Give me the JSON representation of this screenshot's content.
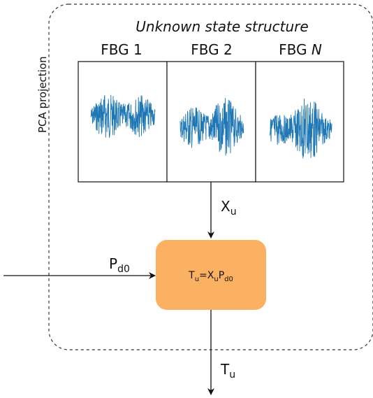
{
  "title": "Unknown state structure",
  "side_label": "PCA projection",
  "sensors": [
    {
      "name": "FBG 1",
      "italic_suffix": ""
    },
    {
      "name": "FBG 2",
      "italic_suffix": ""
    },
    {
      "name": "FBG ",
      "italic_suffix": "N"
    }
  ],
  "input_xu": {
    "base": "X",
    "sub": "u"
  },
  "input_pd0": {
    "base": "P",
    "sub": "d0"
  },
  "process_box": {
    "parts": [
      {
        "base": "T",
        "sub": "u"
      },
      {
        "base": "=X",
        "sub": "u"
      },
      {
        "base": "P",
        "sub": "d0"
      }
    ],
    "color": "#fbb162"
  },
  "output_tu": {
    "base": "T",
    "sub": "u"
  },
  "colors": {
    "signal": "#1f77b4",
    "line": "#111111",
    "dashed": "#333333"
  }
}
